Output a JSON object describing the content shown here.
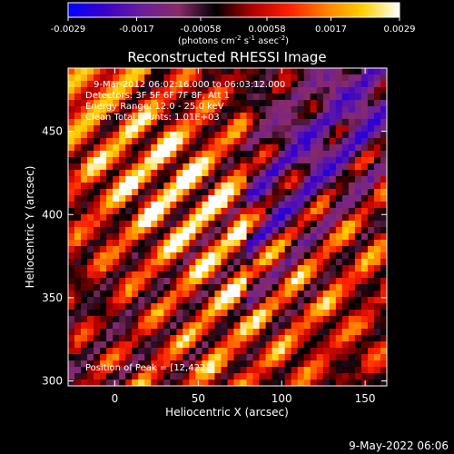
{
  "figure": {
    "title": "Reconstructed RHESSI Image",
    "timestamp": "9-May-2022 06:06"
  },
  "colorbar": {
    "tick_labels": [
      "-0.0029",
      "-0.0017",
      "-0.00058",
      "0.00058",
      "0.0017",
      "0.0029"
    ],
    "tick_values": [
      -0.0029,
      -0.0017,
      -0.00058,
      0.00058,
      0.0017,
      0.0029
    ],
    "range": [
      -0.0029,
      0.0029
    ],
    "units_prefix": "(photons cm",
    "units_sup1": "-2",
    "units_mid1": " s",
    "units_sup2": "-1",
    "units_mid2": " asec",
    "units_sup3": "-2",
    "units_suffix": ")"
  },
  "annotations": {
    "line1": "9-Mar-2012 06:02:16.000 to 06:03:12.000",
    "line2": "Detectors: 3F 5F 6F 7F 8F, Att 1",
    "line3": "Energy Range: 12.0 - 25.0 keV",
    "line4": "Clean    Total counts: 1.01E+03",
    "peak": "Position of Peak = [12,422]"
  },
  "chart_data": {
    "type": "heatmap",
    "title": "Reconstructed RHESSI Image",
    "xlabel": "Heliocentric X (arcsec)",
    "ylabel": "Heliocentric Y (arcsec)",
    "xlim": [
      -28,
      163
    ],
    "ylim": [
      297,
      488
    ],
    "x_ticks": [
      0,
      50,
      100,
      150
    ],
    "y_ticks": [
      300,
      350,
      400,
      450
    ],
    "x_tick_labels": [
      "0",
      "50",
      "100",
      "150"
    ],
    "y_tick_labels": [
      "300",
      "350",
      "400",
      "450"
    ],
    "colormap": [
      "#0000ff",
      "#3a00c8",
      "#6a1f9a",
      "#8a2a6a",
      "#000000",
      "#b00000",
      "#ff2000",
      "#ff8000",
      "#ffd000",
      "#ffffff"
    ],
    "value_range": [
      -0.0029,
      0.0029
    ],
    "peak_position": [
      12,
      422
    ]
  }
}
